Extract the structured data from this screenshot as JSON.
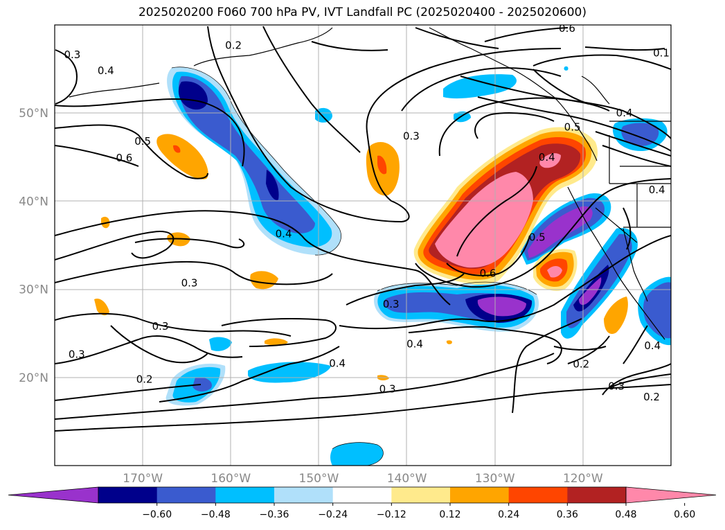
{
  "title": "2025020200 F060 700 hPa PV, IVT Landfall PC (2025020400 - 2025020600)",
  "map": {
    "lat_labels": [
      "50°N",
      "40°N",
      "30°N",
      "20°N"
    ],
    "lon_labels": [
      "170°W",
      "160°W",
      "150°W",
      "140°W",
      "130°W",
      "120°W"
    ],
    "lat_values": [
      50,
      40,
      30,
      20
    ],
    "lon_values": [
      -170,
      -160,
      -150,
      -140,
      -130,
      -120
    ],
    "extent": {
      "lon_min": -180,
      "lon_max": -110,
      "lat_min": 10,
      "lat_max": 60
    },
    "gridlines": true
  },
  "contour_labels": [
    {
      "text": "0.3",
      "lon": -178,
      "lat": 56.6
    },
    {
      "text": "0.4",
      "lon": -174.2,
      "lat": 54.8
    },
    {
      "text": "0.2",
      "lon": -159.7,
      "lat": 57.7
    },
    {
      "text": "0.6",
      "lon": -121.8,
      "lat": 59.6
    },
    {
      "text": "0.1",
      "lon": -111.1,
      "lat": 56.8
    },
    {
      "text": "0.3",
      "lon": -139.5,
      "lat": 47.4
    },
    {
      "text": "0.6",
      "lon": -172.1,
      "lat": 44.9
    },
    {
      "text": "0.5",
      "lon": -170.0,
      "lat": 46.8
    },
    {
      "text": "0.4",
      "lon": -124.1,
      "lat": 45.0
    },
    {
      "text": "0.5",
      "lon": -121.2,
      "lat": 48.4
    },
    {
      "text": "0.4",
      "lon": -115.3,
      "lat": 50.0
    },
    {
      "text": "0.4",
      "lon": -154.0,
      "lat": 36.3
    },
    {
      "text": "0.3",
      "lon": -164.7,
      "lat": 30.7
    },
    {
      "text": "0.5",
      "lon": -125.2,
      "lat": 35.9
    },
    {
      "text": "0.6",
      "lon": -130.8,
      "lat": 31.8
    },
    {
      "text": "0.3",
      "lon": -141.8,
      "lat": 28.3
    },
    {
      "text": "0.3",
      "lon": -177.5,
      "lat": 22.6
    },
    {
      "text": "0.3",
      "lon": -168.0,
      "lat": 25.8
    },
    {
      "text": "0.4",
      "lon": -147.9,
      "lat": 21.6
    },
    {
      "text": "0.4",
      "lon": -139.1,
      "lat": 23.8
    },
    {
      "text": "0.2",
      "lon": -169.8,
      "lat": 19.8
    },
    {
      "text": "0.3",
      "lon": -142.2,
      "lat": 18.7
    },
    {
      "text": "0.2",
      "lon": -120.2,
      "lat": 21.5
    },
    {
      "text": "0.3",
      "lon": -116.2,
      "lat": 19.0
    },
    {
      "text": "0.2",
      "lon": -112.2,
      "lat": 17.8
    },
    {
      "text": "0.4",
      "lon": -112.1,
      "lat": 23.6
    },
    {
      "text": "0.4",
      "lon": -111.6,
      "lat": 41.3
    }
  ],
  "colorbar": {
    "levels": [
      "−0.60",
      "−0.48",
      "−0.36",
      "−0.24",
      "−0.12",
      "0.12",
      "0.24",
      "0.36",
      "0.48",
      "0.60"
    ],
    "colors": [
      "#9932cc",
      "#00008b",
      "#3a5bcf",
      "#00bfff",
      "#b0e0fa",
      "#ffffff",
      "#ffea8c",
      "#ffa500",
      "#ff4500",
      "#b22222",
      "#ff88aa"
    ],
    "extend": "both"
  }
}
